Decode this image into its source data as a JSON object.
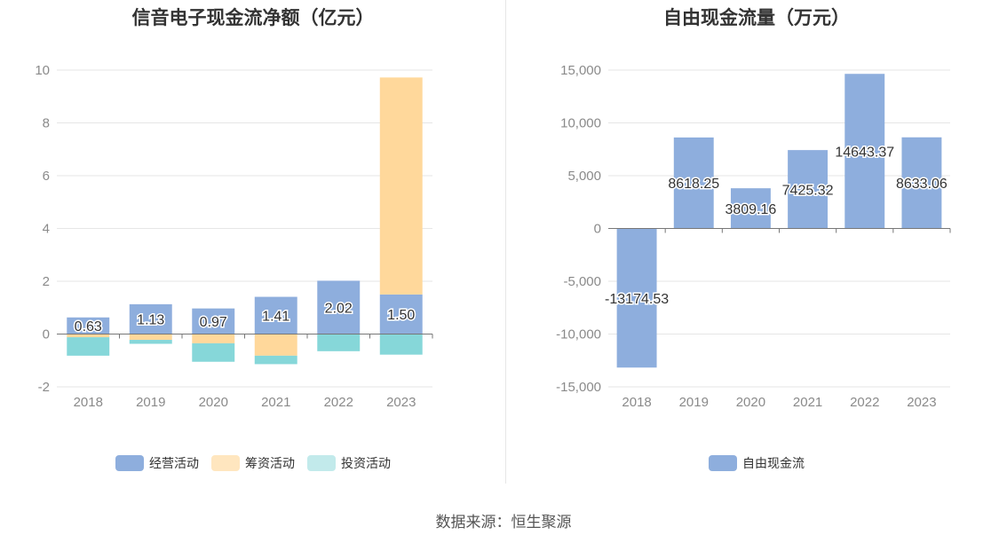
{
  "footer": {
    "source": "数据来源：恒生聚源"
  },
  "chart_data": [
    {
      "type": "bar",
      "stacked": true,
      "title": "信音电子现金流净额（亿元）",
      "categories": [
        "2018",
        "2019",
        "2020",
        "2021",
        "2022",
        "2023"
      ],
      "ylim": [
        -2,
        10
      ],
      "yticks": [
        "-2",
        "0",
        "2",
        "4",
        "6",
        "8",
        "10"
      ],
      "grid": true,
      "legend_position": "bottom",
      "series": [
        {
          "name": "经营活动",
          "color": "#8eaedd",
          "values": [
            0.63,
            1.13,
            0.97,
            1.41,
            2.02,
            1.5
          ],
          "labels": [
            "0.63",
            "1.13",
            "0.97",
            "1.41",
            "2.02",
            "1.50"
          ]
        },
        {
          "name": "筹资活动",
          "color": "#ffd89b",
          "values": [
            -0.12,
            -0.22,
            -0.35,
            -0.82,
            0.0,
            8.22
          ]
        },
        {
          "name": "投资活动",
          "color": "#86d7d9",
          "values": [
            -0.7,
            -0.15,
            -0.7,
            -0.32,
            -0.65,
            -0.78
          ]
        }
      ]
    },
    {
      "type": "bar",
      "title": "自由现金流量（万元）",
      "categories": [
        "2018",
        "2019",
        "2020",
        "2021",
        "2022",
        "2023"
      ],
      "ylim": [
        -15000,
        15000
      ],
      "yticks": [
        "-15,000",
        "-10,000",
        "-5,000",
        "0",
        "5,000",
        "10,000",
        "15,000"
      ],
      "grid": true,
      "legend_position": "bottom",
      "series": [
        {
          "name": "自由现金流",
          "color": "#8eaedd",
          "values": [
            -13174.53,
            8618.25,
            3809.16,
            7425.32,
            14643.37,
            8633.06
          ],
          "labels": [
            "-13174.53",
            "8618.25",
            "3809.16",
            "7425.32",
            "14643.37",
            "8633.06"
          ]
        }
      ]
    }
  ]
}
